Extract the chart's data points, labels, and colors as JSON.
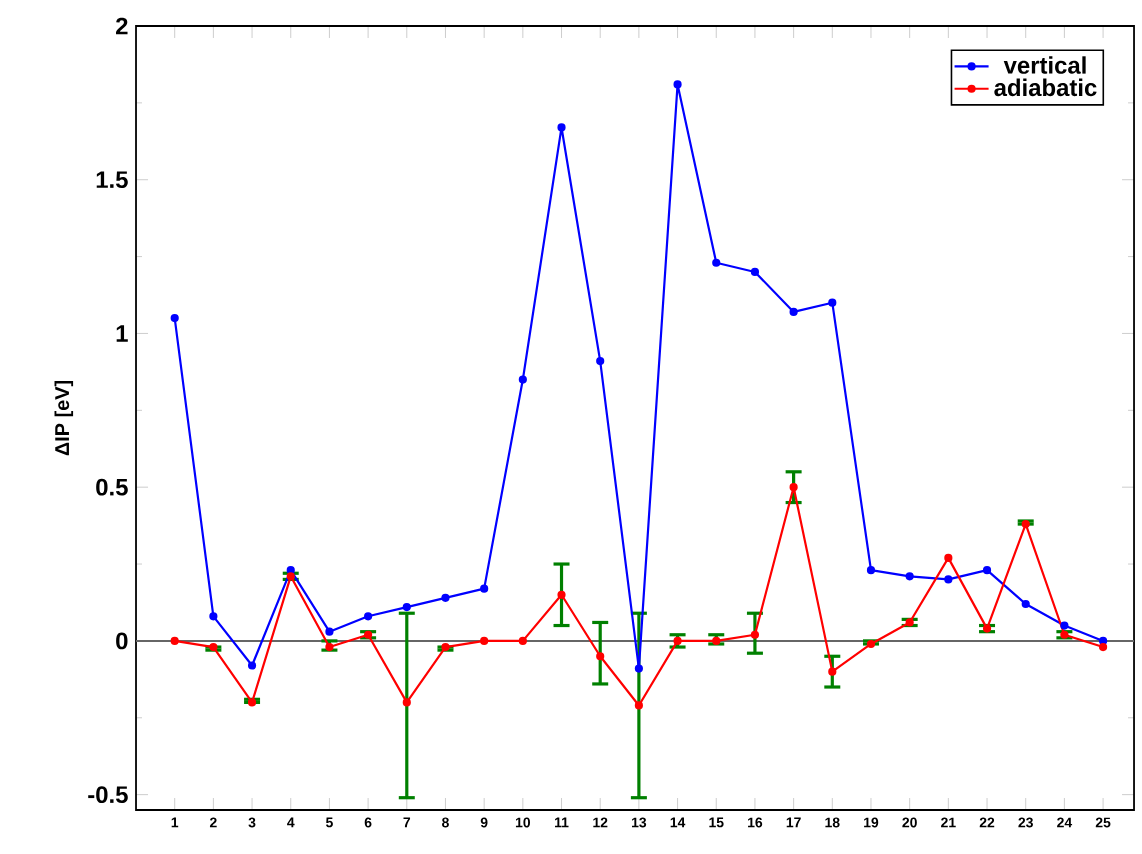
{
  "chart_data": {
    "type": "line",
    "ylabel": "ΔIP [eV]",
    "x": [
      1,
      2,
      3,
      4,
      5,
      6,
      7,
      8,
      9,
      10,
      11,
      12,
      13,
      14,
      15,
      16,
      17,
      18,
      19,
      20,
      21,
      22,
      23,
      24,
      25
    ],
    "series": [
      {
        "name": "vertical",
        "color": "#0000ff",
        "values": [
          1.05,
          0.08,
          -0.08,
          0.23,
          0.03,
          0.08,
          0.11,
          0.14,
          0.17,
          0.85,
          1.67,
          0.91,
          -0.09,
          1.81,
          1.23,
          1.2,
          1.07,
          1.1,
          0.23,
          0.21,
          0.2,
          0.23,
          0.12,
          0.05,
          0.0
        ]
      },
      {
        "name": "adiabatic",
        "color": "#ff0000",
        "values": [
          0.0,
          -0.02,
          -0.2,
          0.21,
          -0.02,
          0.02,
          -0.2,
          -0.02,
          0.0,
          0.0,
          0.15,
          -0.05,
          -0.21,
          0.0,
          0.0,
          0.02,
          0.5,
          -0.1,
          -0.01,
          0.06,
          0.27,
          0.04,
          0.38,
          0.02,
          -0.02
        ],
        "errors": [
          null,
          [
            -0.03,
            -0.02
          ],
          [
            -0.2,
            -0.19
          ],
          [
            0.2,
            0.22
          ],
          [
            -0.03,
            0.0
          ],
          [
            0.01,
            0.03
          ],
          [
            -0.51,
            0.09
          ],
          [
            -0.03,
            -0.02
          ],
          null,
          null,
          [
            0.05,
            0.25
          ],
          [
            -0.14,
            0.06
          ],
          [
            -0.51,
            0.09
          ],
          [
            -0.02,
            0.02
          ],
          [
            -0.01,
            0.02
          ],
          [
            -0.04,
            0.09
          ],
          [
            0.45,
            0.55
          ],
          [
            -0.15,
            -0.05
          ],
          [
            -0.01,
            0.0
          ],
          [
            0.05,
            0.07
          ],
          null,
          [
            0.03,
            0.05
          ],
          [
            0.38,
            0.39
          ],
          [
            0.01,
            0.03
          ],
          null
        ]
      }
    ],
    "xlim": [
      0,
      25.8
    ],
    "ylim": [
      -0.55,
      2
    ],
    "xticks": [
      1,
      2,
      3,
      4,
      5,
      6,
      7,
      8,
      9,
      10,
      11,
      12,
      13,
      14,
      15,
      16,
      17,
      18,
      19,
      20,
      21,
      22,
      23,
      24,
      25
    ],
    "yticks": [
      {
        "value": -0.5,
        "label": "-0.5"
      },
      0,
      0.5,
      1,
      1.5,
      2
    ],
    "ref_lines": [
      {
        "axis": "y",
        "value": 0,
        "color": "#666666"
      }
    ],
    "legend": "top right",
    "marker": "circle",
    "line_style": "solid",
    "grid": false
  }
}
